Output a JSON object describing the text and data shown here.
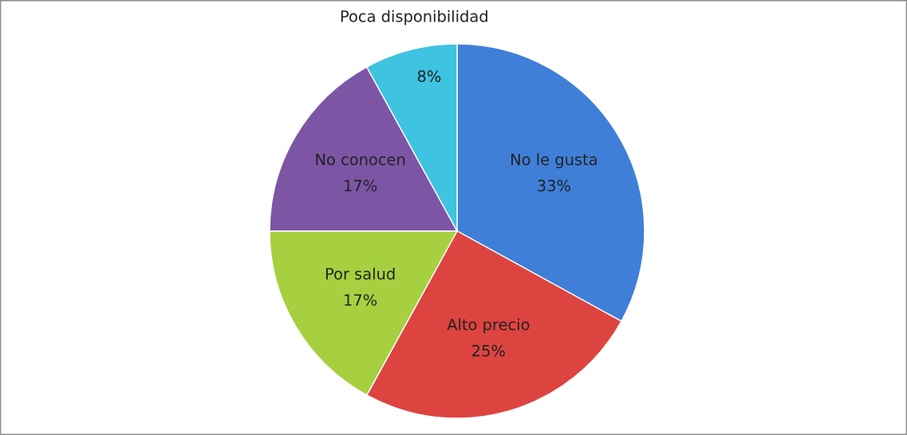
{
  "chart_data": {
    "type": "pie",
    "categories": [
      "No le gusta",
      "Alto precio",
      "Por salud",
      "No conocen",
      "Poca disponibilidad"
    ],
    "values": [
      33,
      25,
      17,
      17,
      8
    ],
    "value_labels": [
      "33%",
      "25%",
      "17%",
      "17%",
      "8%"
    ],
    "colors": [
      "#3f7fd8",
      "#dd4440",
      "#a6d040",
      "#7d55a5",
      "#3ec3e0"
    ]
  }
}
